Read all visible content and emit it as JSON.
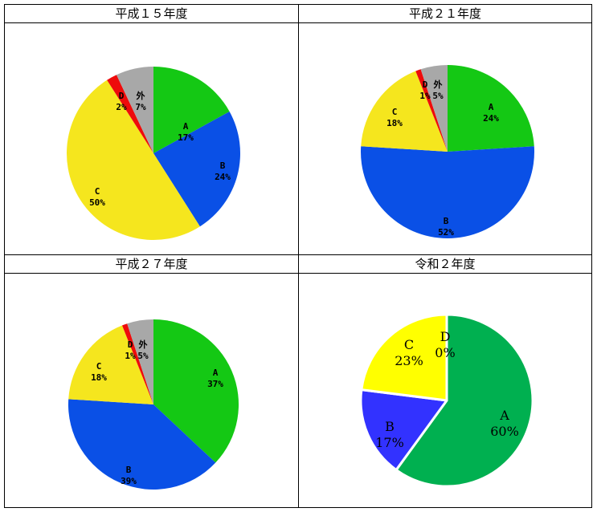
{
  "chart_data": [
    {
      "type": "pie",
      "title": "平成１５年度",
      "labels": [
        "A",
        "B",
        "C",
        "D",
        "外"
      ],
      "values": [
        17,
        24,
        50,
        2,
        7
      ],
      "value_labels": [
        "17%",
        "24%",
        "50%",
        "2%",
        "7%"
      ],
      "colors": [
        "#14c814",
        "#0a50e6",
        "#f5e61e",
        "#ee0b0b",
        "#a8a8a8"
      ]
    },
    {
      "type": "pie",
      "title": "平成２１年度",
      "labels": [
        "A",
        "B",
        "C",
        "D",
        "外"
      ],
      "values": [
        24,
        52,
        18,
        1,
        5
      ],
      "value_labels": [
        "24%",
        "52%",
        "18%",
        "1%",
        "5%"
      ],
      "colors": [
        "#14c814",
        "#0a50e6",
        "#f5e61e",
        "#ee0b0b",
        "#a8a8a8"
      ]
    },
    {
      "type": "pie",
      "title": "平成２７年度",
      "labels": [
        "A",
        "B",
        "C",
        "D",
        "外"
      ],
      "values": [
        37,
        39,
        18,
        1,
        5
      ],
      "value_labels": [
        "37%",
        "39%",
        "18%",
        "1%",
        "5%"
      ],
      "colors": [
        "#14c814",
        "#0a50e6",
        "#f5e61e",
        "#ee0b0b",
        "#a8a8a8"
      ]
    },
    {
      "type": "pie",
      "title": "令和２年度",
      "labels": [
        "A",
        "B",
        "C",
        "D"
      ],
      "values": [
        60,
        17,
        23,
        0
      ],
      "value_labels": [
        "60%",
        "17%",
        "23%",
        "0%"
      ],
      "colors": [
        "#00b050",
        "#3232ff",
        "#ffff00",
        "#ff0000"
      ]
    }
  ]
}
